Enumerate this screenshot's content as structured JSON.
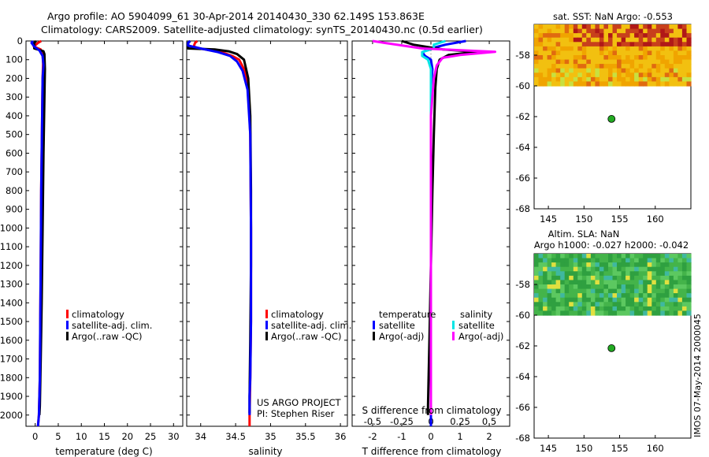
{
  "header": {
    "line1": "Argo profile: AO 5904099_61 30-Apr-2014 20140430_330 62.149S 153.863E",
    "line2": "Climatology: CARS2009. Satellite-adjusted climatology: synTS_20140430.nc (0.5d earlier)"
  },
  "footer_side": "IMOS 07-May-2014 2000045",
  "colors": {
    "climatology": "#ff0000",
    "satellite": "#0000ff",
    "argo": "#000000",
    "sat_salinity": "#00e5e5",
    "argo_salinity": "#ff00ff",
    "float_marker": "#22aa22"
  },
  "chart_data": [
    {
      "type": "line",
      "id": "temperature",
      "xlabel": "temperature (deg C)",
      "xlim": [
        -2,
        32
      ],
      "xticks": [
        0,
        5,
        10,
        15,
        20,
        25,
        30
      ],
      "ylim": [
        0,
        2060
      ],
      "yticks": [
        0,
        100,
        200,
        300,
        400,
        500,
        600,
        700,
        800,
        900,
        1000,
        1100,
        1200,
        1300,
        1400,
        1500,
        1600,
        1700,
        1800,
        1900,
        2000
      ],
      "legend": [
        "climatology",
        "satellite-adj. clim.",
        "Argo(..raw -QC)"
      ],
      "series": [
        {
          "name": "climatology",
          "color": "#ff0000",
          "x": [
            1.3,
            0.6,
            -0.3,
            1.2,
            1.6,
            1.7,
            1.6,
            1.5,
            1.3,
            1.2,
            1.1,
            1.0,
            0.8,
            0.6
          ],
          "y": [
            0,
            10,
            30,
            45,
            70,
            120,
            200,
            400,
            800,
            1200,
            1500,
            1800,
            2000,
            2060
          ]
        },
        {
          "name": "Argo",
          "color": "#000000",
          "x": [
            0.2,
            -0.2,
            -0.2,
            1.8,
            2.0,
            2.1,
            2.0,
            1.8,
            1.6,
            1.4,
            1.2,
            1.0,
            0.9
          ],
          "y": [
            0,
            10,
            40,
            55,
            70,
            150,
            300,
            600,
            1000,
            1400,
            1700,
            1950,
            2000
          ]
        },
        {
          "name": "satellite-adj. clim.",
          "color": "#0000ff",
          "x": [
            -0.5,
            -0.8,
            -0.2,
            0.9,
            1.6,
            1.8,
            1.6,
            1.5,
            1.3,
            1.2,
            1.1,
            1.0,
            0.8,
            0.6
          ],
          "y": [
            0,
            10,
            30,
            50,
            80,
            130,
            200,
            400,
            800,
            1200,
            1500,
            1800,
            2000,
            2060
          ]
        }
      ]
    },
    {
      "type": "line",
      "id": "salinity",
      "xlabel": "salinity",
      "xlim": [
        33.8,
        36.1
      ],
      "xticks": [
        34,
        34.5,
        35,
        35.5,
        36
      ],
      "xticklabels": [
        "34",
        "34.5",
        "35",
        "35.5",
        "36"
      ],
      "ylim": [
        0,
        2060
      ],
      "legend": [
        "climatology",
        "satellite-adj. clim.",
        "Argo(..raw -QC)"
      ],
      "annotation": [
        "US ARGO PROJECT",
        "PI: Stephen Riser"
      ],
      "series": [
        {
          "name": "climatology",
          "color": "#ff0000",
          "x": [
            33.95,
            33.92,
            33.9,
            33.98,
            34.3,
            34.45,
            34.55,
            34.62,
            34.68,
            34.71,
            34.72,
            34.72,
            34.71,
            34.7,
            34.7
          ],
          "y": [
            0,
            10,
            30,
            40,
            60,
            80,
            100,
            150,
            250,
            500,
            1000,
            1500,
            1800,
            2000,
            2060
          ]
        },
        {
          "name": "Argo",
          "color": "#000000",
          "x": [
            33.85,
            33.82,
            33.82,
            34.2,
            34.4,
            34.52,
            34.62,
            34.68,
            34.71,
            34.72,
            34.72,
            34.71,
            34.7,
            34.7
          ],
          "y": [
            0,
            10,
            40,
            45,
            55,
            70,
            100,
            200,
            400,
            800,
            1200,
            1600,
            1900,
            1990
          ]
        },
        {
          "name": "satellite-adj. clim.",
          "color": "#0000ff",
          "x": [
            33.85,
            33.82,
            33.82,
            34.0,
            34.25,
            34.42,
            34.52,
            34.6,
            34.67,
            34.71,
            34.72,
            34.72,
            34.71,
            34.7,
            34.7
          ],
          "y": [
            0,
            10,
            25,
            40,
            60,
            80,
            110,
            160,
            260,
            500,
            1000,
            1500,
            1800,
            1900,
            2000
          ]
        }
      ]
    },
    {
      "type": "line",
      "id": "difference",
      "xlabel": "T difference from climatology",
      "top_xlabel": "S difference from climatology",
      "xlim": [
        -2.7,
        2.7
      ],
      "xticks": [
        -2,
        -1,
        0,
        1,
        2
      ],
      "xticklabels": [
        "-2",
        "-1",
        "0",
        "1",
        "2"
      ],
      "s_xticks": [
        -0.5,
        -0.25,
        0,
        0.25,
        0.5
      ],
      "s_xticklabels": [
        "-0.5",
        "-0.25",
        "0",
        "0.25",
        "0.5"
      ],
      "s_scale": 4,
      "ylim": [
        0,
        2060
      ],
      "legend_headers": [
        "temperature",
        "salinity"
      ],
      "legend_left": [
        "satellite",
        "Argo(-adj)"
      ],
      "legend_right": [
        "satellite",
        "Argo(-adj)"
      ],
      "series": [
        {
          "name": "temperature satellite",
          "color": "#0000ff",
          "x": [
            1.2,
            0.5,
            0,
            -0.3,
            -0.2,
            0,
            0.05,
            0.03,
            0,
            0,
            0,
            0,
            0,
            0
          ],
          "y": [
            0,
            20,
            40,
            60,
            80,
            100,
            150,
            200,
            400,
            800,
            1200,
            1600,
            2000,
            2060
          ]
        },
        {
          "name": "temperature Argo(-adj)",
          "color": "#000000",
          "x": [
            -1,
            -0.6,
            0.4,
            1.6,
            0.6,
            0.3,
            0.2,
            0.15,
            0.1,
            0.05,
            0,
            -0.05,
            -0.1,
            -0.1
          ],
          "y": [
            0,
            20,
            45,
            58,
            75,
            100,
            150,
            250,
            500,
            800,
            1200,
            1600,
            1950,
            2000
          ]
        },
        {
          "name": "salinity satellite",
          "color": "#00e5e5",
          "x": [
            0.5,
            0.1,
            0.1,
            -0.3,
            -0.3,
            -0.1,
            0,
            0,
            0,
            0,
            0,
            0,
            0
          ],
          "y": [
            0,
            20,
            40,
            60,
            80,
            100,
            150,
            300,
            600,
            1000,
            1400,
            1800,
            2000
          ]
        },
        {
          "name": "salinity Argo(-adj)",
          "color": "#ff00ff",
          "x": [
            -2.0,
            -1.6,
            -0.3,
            2.2,
            1.0,
            0.4,
            0.2,
            0.1,
            0,
            0,
            0
          ],
          "y": [
            0,
            10,
            40,
            58,
            75,
            90,
            130,
            200,
            400,
            800,
            2000
          ]
        }
      ]
    },
    {
      "type": "heatmap",
      "id": "sst_map",
      "title": "sat. SST: NaN Argo: -0.553",
      "xlim": [
        143,
        165
      ],
      "ylim": [
        -68,
        -56
      ],
      "xticks": [
        145,
        150,
        155,
        160
      ],
      "yticks": [
        -58,
        -60,
        -62,
        -64,
        -66,
        -68
      ],
      "data_lat_range": [
        -60,
        -56
      ],
      "float_position": {
        "lon": 153.863,
        "lat": -62.149
      }
    },
    {
      "type": "heatmap",
      "id": "sla_map",
      "title": "Altim. SLA: NaN",
      "subtitle": "Argo h1000: -0.027 h2000: -0.042",
      "xlim": [
        143,
        165
      ],
      "ylim": [
        -68,
        -56
      ],
      "xticks": [
        145,
        150,
        155,
        160
      ],
      "yticks": [
        -58,
        -60,
        -62,
        -64,
        -66,
        -68
      ],
      "data_lat_range": [
        -60,
        -56
      ],
      "float_position": {
        "lon": 153.863,
        "lat": -62.149
      }
    }
  ]
}
